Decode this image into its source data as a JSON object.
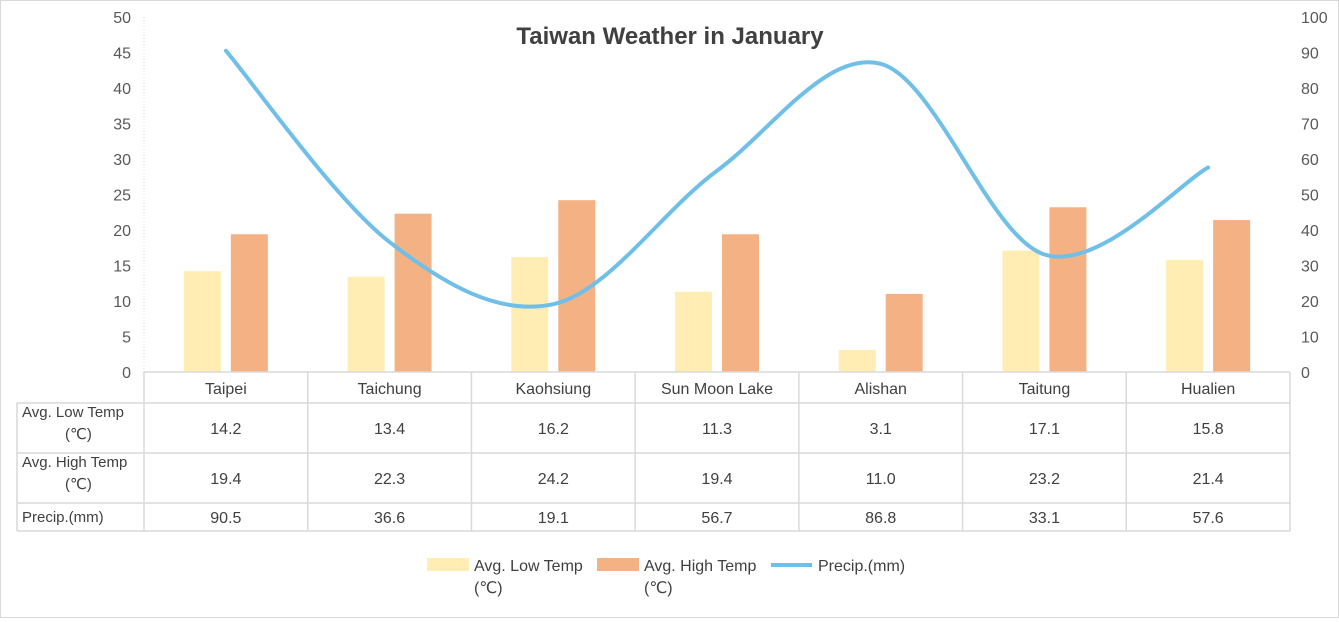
{
  "chart_data": {
    "type": "bar",
    "title": "Taiwan Weather in January",
    "categories": [
      "Taipei",
      "Taichung",
      "Kaohsiung",
      "Sun Moon Lake",
      "Alishan",
      "Taitung",
      "Hualien"
    ],
    "series": [
      {
        "name": "Avg. Low Temp (℃)",
        "name_lines": [
          "Avg. Low Temp",
          "(℃)"
        ],
        "type": "bar",
        "axis": "left",
        "color": "#FFEDB3",
        "values": [
          14.2,
          13.4,
          16.2,
          11.3,
          3.1,
          17.1,
          15.8
        ],
        "labels": [
          "14.2",
          "13.4",
          "16.2",
          "11.3",
          "3.1",
          "17.1",
          "15.8"
        ]
      },
      {
        "name": "Avg. High Temp (℃)",
        "name_lines": [
          "Avg. High Temp",
          "(℃)"
        ],
        "type": "bar",
        "axis": "left",
        "color": "#F4B183",
        "values": [
          19.4,
          22.3,
          24.2,
          19.4,
          11.0,
          23.2,
          21.4
        ],
        "labels": [
          "19.4",
          "22.3",
          "24.2",
          "19.4",
          "11.0",
          "23.2",
          "21.4"
        ]
      },
      {
        "name": "Precip.(mm)",
        "name_lines": [
          "Precip.(mm)"
        ],
        "type": "line",
        "smooth": true,
        "axis": "right",
        "color": "#70BFE8",
        "values": [
          90.5,
          36.6,
          19.1,
          56.7,
          86.8,
          33.1,
          57.6
        ],
        "labels": [
          "90.5",
          "36.6",
          "19.1",
          "56.7",
          "86.8",
          "33.1",
          "57.6"
        ]
      }
    ],
    "y_left": {
      "min": 0,
      "max": 50,
      "step": 5,
      "ticks": [
        "0",
        "5",
        "10",
        "15",
        "20",
        "25",
        "30",
        "35",
        "40",
        "45",
        "50"
      ]
    },
    "y_right": {
      "min": 0,
      "max": 100,
      "step": 10,
      "ticks": [
        "0",
        "10",
        "20",
        "30",
        "40",
        "50",
        "60",
        "70",
        "80",
        "90",
        "100"
      ]
    },
    "data_table": true,
    "grid": false,
    "legend_position": "bottom"
  }
}
